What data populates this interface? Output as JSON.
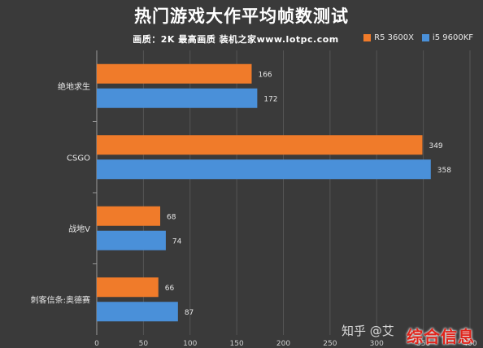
{
  "chart_data": {
    "type": "bar",
    "orientation": "horizontal",
    "title": "热门游戏大作平均帧数测试",
    "subtitle": "画质：2K 最高画质 装机之家www.lotpc.com",
    "categories": [
      "绝地求生",
      "CSGO",
      "战地V",
      "刺客信条:奥德赛"
    ],
    "series": [
      {
        "name": "R5 3600X",
        "color": "#f07b2a",
        "values": [
          166,
          349,
          68,
          66
        ]
      },
      {
        "name": "i5 9600KF",
        "color": "#4a90d9",
        "values": [
          172,
          358,
          74,
          87
        ]
      }
    ],
    "xlim": [
      0,
      400
    ],
    "xticks": [
      0,
      50,
      100,
      150,
      200,
      250,
      300,
      350,
      400
    ],
    "legend_position": "top-right",
    "grid": true
  },
  "watermark": "知乎 @艾",
  "brand_watermark": "综合信息"
}
